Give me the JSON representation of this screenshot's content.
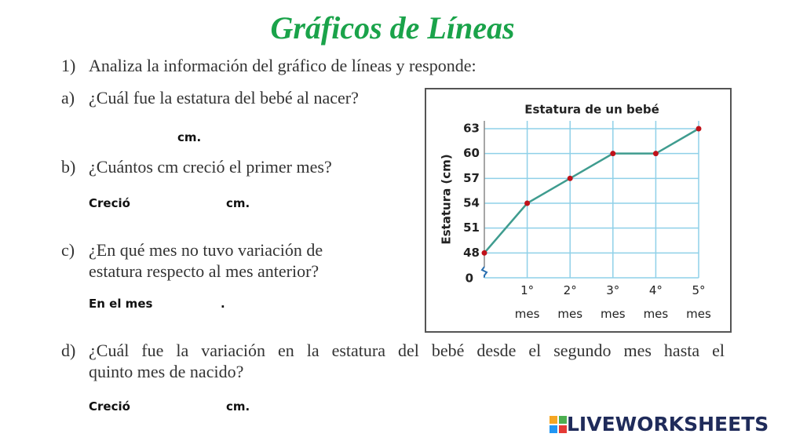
{
  "header": {
    "title": "Gráficos de Líneas"
  },
  "intro": {
    "number": "1)",
    "text": "Analiza la información del gráfico de líneas y responde:"
  },
  "questions": [
    {
      "letter": "a)",
      "lines": [
        "¿Cuál fue la estatura del bebé al nacer?"
      ],
      "answer": [
        "cm."
      ]
    },
    {
      "letter": "b)",
      "lines": [
        "¿Cuántos cm creció el primer mes?"
      ],
      "answer": [
        "Creció",
        "cm."
      ]
    },
    {
      "letter": "c)",
      "lines": [
        "¿En qué mes no tuvo variación de",
        "estatura respecto al mes anterior?"
      ],
      "answer": [
        "En el mes",
        "."
      ]
    },
    {
      "letter": "d)",
      "lines": [
        "¿Cuál fue la variación en la estatura del bebé desde el segundo mes hasta el",
        "quinto mes de nacido?"
      ],
      "answer": [
        "Creció",
        "cm."
      ]
    }
  ],
  "chart_data": {
    "type": "line",
    "title": "Estatura de un bebé",
    "y_label": "Estatura (cm)",
    "y_origin_label": "0",
    "x": [
      0,
      1,
      2,
      3,
      4,
      5
    ],
    "series": [
      {
        "name": "Estatura",
        "color": "#3f9c8f",
        "marker_color": "#c0121a",
        "values": [
          48,
          54,
          57,
          60,
          60,
          63
        ]
      }
    ],
    "xlim": [
      0,
      5
    ],
    "xticks": [
      {
        "value": 1,
        "label": "1° mes"
      },
      {
        "value": 2,
        "label": "2° mes"
      },
      {
        "value": 3,
        "label": "3° mes"
      },
      {
        "value": 4,
        "label": "4° mes"
      },
      {
        "value": 5,
        "label": "5° mes"
      }
    ],
    "ylim": [
      45,
      63
    ],
    "yticks": [
      48,
      51,
      54,
      57,
      60,
      63
    ],
    "grid": true,
    "grid_color": "#8fd0e8"
  },
  "footer": {
    "logo": "LIVEWORKSHEETS"
  }
}
